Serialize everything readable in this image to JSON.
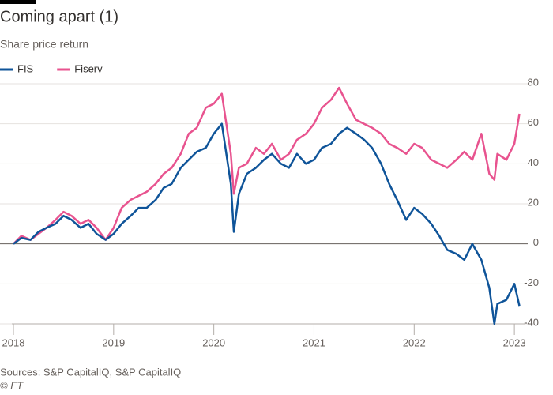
{
  "chart_data": {
    "type": "line",
    "title": "Coming apart (1)",
    "subtitle": "Share price return",
    "source": "Sources: S&P CapitalIQ, S&P CapitalIQ",
    "credit": "© FT",
    "x": [
      2018,
      2018.08,
      2018.17,
      2018.25,
      2018.33,
      2018.42,
      2018.5,
      2018.58,
      2018.67,
      2018.75,
      2018.83,
      2018.92,
      2019,
      2019.08,
      2019.17,
      2019.25,
      2019.33,
      2019.42,
      2019.5,
      2019.58,
      2019.67,
      2019.75,
      2019.83,
      2019.92,
      2020,
      2020.08,
      2020.17,
      2020.2,
      2020.25,
      2020.33,
      2020.42,
      2020.5,
      2020.58,
      2020.67,
      2020.75,
      2020.83,
      2020.92,
      2021,
      2021.08,
      2021.17,
      2021.25,
      2021.33,
      2021.42,
      2021.5,
      2021.58,
      2021.67,
      2021.75,
      2021.83,
      2021.92,
      2022,
      2022.08,
      2022.17,
      2022.25,
      2022.33,
      2022.42,
      2022.5,
      2022.58,
      2022.67,
      2022.75,
      2022.8,
      2022.83,
      2022.92,
      2023,
      2023.05
    ],
    "series": [
      {
        "name": "FIS",
        "color": "#0f5499",
        "values": [
          0,
          3,
          2,
          6,
          8,
          10,
          14,
          12,
          8,
          10,
          5,
          2,
          5,
          10,
          14,
          18,
          18,
          22,
          28,
          30,
          38,
          42,
          46,
          48,
          55,
          60,
          30,
          6,
          25,
          35,
          38,
          42,
          45,
          40,
          38,
          45,
          40,
          42,
          48,
          50,
          55,
          58,
          55,
          52,
          48,
          40,
          30,
          22,
          12,
          18,
          15,
          10,
          4,
          -3,
          -5,
          -8,
          0,
          -8,
          -22,
          -40,
          -30,
          -28,
          -20,
          -31
        ]
      },
      {
        "name": "Fiserv",
        "color": "#e8538f",
        "values": [
          0,
          4,
          2,
          5,
          8,
          12,
          16,
          14,
          10,
          12,
          8,
          2,
          8,
          18,
          22,
          24,
          26,
          30,
          35,
          38,
          45,
          55,
          58,
          68,
          70,
          75,
          45,
          25,
          38,
          40,
          48,
          45,
          50,
          42,
          45,
          52,
          55,
          60,
          68,
          72,
          78,
          70,
          62,
          60,
          58,
          55,
          50,
          48,
          45,
          50,
          48,
          42,
          40,
          38,
          42,
          46,
          42,
          55,
          35,
          32,
          45,
          42,
          50,
          65
        ]
      }
    ],
    "xlim": [
      2018,
      2023.07
    ],
    "xticks": [
      2018,
      2019,
      2020,
      2021,
      2022,
      2023
    ],
    "ylim": [
      -40,
      80
    ],
    "yticks": [
      -40,
      -20,
      0,
      20,
      40,
      60,
      80
    ],
    "grid": true,
    "legend": "top-left"
  }
}
